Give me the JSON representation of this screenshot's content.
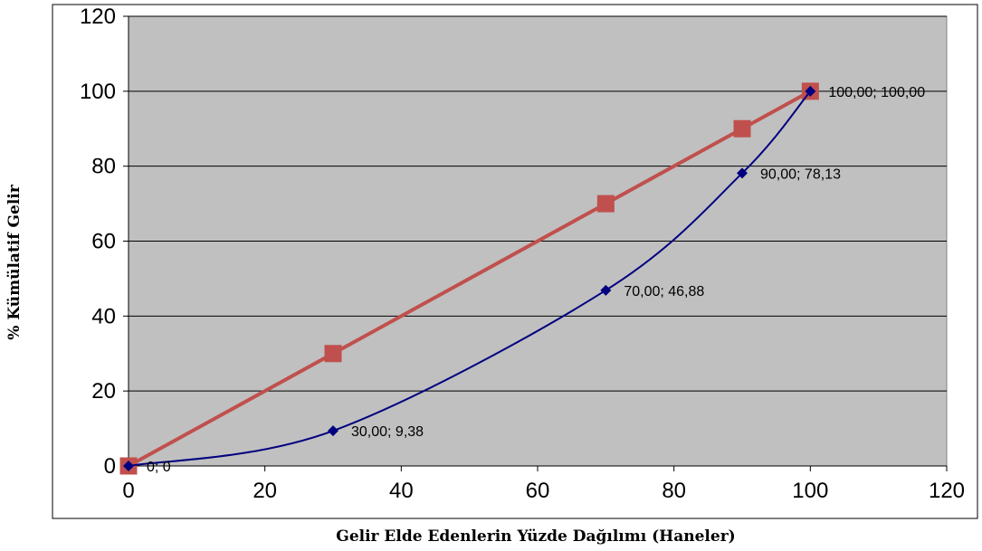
{
  "chart_data": {
    "type": "line",
    "title": "",
    "xlabel": "Gelir Elde Edenlerin Yüzde Dağılımı (Haneler)",
    "ylabel": "% Kümülatif Gelir",
    "xlim": [
      0,
      120
    ],
    "ylim": [
      0,
      120
    ],
    "x_ticks": [
      "0",
      "20",
      "40",
      "60",
      "80",
      "100",
      "120"
    ],
    "y_ticks": [
      "0",
      "20",
      "40",
      "60",
      "80",
      "100",
      "120"
    ],
    "grid": "horizontal",
    "plot_background": "#c0c0c0",
    "series": [
      {
        "color": "#c0504d",
        "marker": "square",
        "smooth": false,
        "x": [
          0,
          30,
          70,
          90,
          100
        ],
        "y": [
          0,
          30,
          70,
          90,
          100
        ]
      },
      {
        "color": "#000080",
        "marker": "diamond",
        "smooth": true,
        "x": [
          0,
          30,
          70,
          90,
          100
        ],
        "y": [
          0,
          9.38,
          46.88,
          78.13,
          100
        ]
      }
    ],
    "data_labels": [
      {
        "x": 0,
        "y": 0,
        "text": "0; 0"
      },
      {
        "x": 30,
        "y": 9.38,
        "text": "30,00; 9,38"
      },
      {
        "x": 70,
        "y": 46.88,
        "text": "70,00; 46,88"
      },
      {
        "x": 90,
        "y": 78.13,
        "text": "90,00; 78,13"
      },
      {
        "x": 100,
        "y": 100,
        "text": "100,00; 100,00"
      }
    ]
  }
}
